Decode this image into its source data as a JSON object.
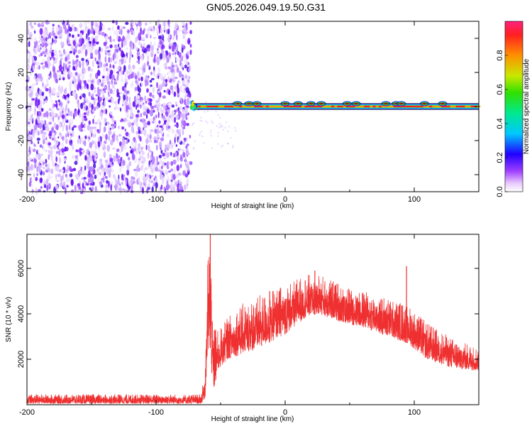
{
  "title": "GN05.2026.049.19.50.G31",
  "colors": {
    "noise_purple": "#6a00ff",
    "snr_line": "#ef3030",
    "ridge_core": "#ff2020",
    "ridge_mid": "#30e030",
    "ridge_edge": "#0040ff"
  },
  "chart_data": [
    {
      "type": "heatmap",
      "xlabel": "Height of straight line (km)",
      "ylabel": "Frequency (Hz)",
      "xlim": [
        -200,
        150
      ],
      "ylim": [
        -50,
        50
      ],
      "xticks": [
        -200,
        -100,
        0,
        100
      ],
      "yticks": [
        -40,
        -20,
        0,
        20,
        40
      ],
      "noise_region_x": [
        -200,
        -73
      ],
      "signal_frequency_hz": 0,
      "signal_range_x": [
        -73,
        150
      ],
      "ridge_hotspots_x": [
        -37,
        -28,
        -22,
        0,
        10,
        20,
        28,
        48,
        55,
        78,
        86,
        90,
        108,
        122
      ],
      "colorbar": {
        "label": "Normalized spectral amplitude",
        "range": [
          0,
          1
        ],
        "ticks": [
          0.0,
          0.2,
          0.4,
          0.6,
          0.8
        ],
        "colormap": "rainbow (white-purple-blue-cyan-green-yellow-red)"
      }
    },
    {
      "type": "line",
      "xlabel": "Height of straight line (km)",
      "ylabel": "SNR (10 * v/v)",
      "xlim": [
        -200,
        150
      ],
      "ylim": [
        0,
        7500
      ],
      "xticks": [
        -200,
        -100,
        0,
        100
      ],
      "yticks": [
        2000,
        4000,
        6000
      ],
      "series": [
        {
          "envelope": [
            {
              "x": -200,
              "lo": 50,
              "hi": 450
            },
            {
              "x": -150,
              "lo": 50,
              "hi": 450
            },
            {
              "x": -100,
              "lo": 50,
              "hi": 450
            },
            {
              "x": -65,
              "lo": 50,
              "hi": 450
            },
            {
              "x": -62,
              "lo": 300,
              "hi": 1500
            },
            {
              "x": -60,
              "lo": 2000,
              "hi": 6500
            },
            {
              "x": -58,
              "lo": 2500,
              "hi": 7500
            },
            {
              "x": -56,
              "lo": 300,
              "hi": 4000
            },
            {
              "x": -52,
              "lo": 1500,
              "hi": 3200
            },
            {
              "x": -45,
              "lo": 2000,
              "hi": 3800
            },
            {
              "x": -35,
              "lo": 2200,
              "hi": 4400
            },
            {
              "x": -20,
              "lo": 2500,
              "hi": 4800
            },
            {
              "x": 0,
              "lo": 3100,
              "hi": 5300
            },
            {
              "x": 15,
              "lo": 3800,
              "hi": 5700
            },
            {
              "x": 25,
              "lo": 4000,
              "hi": 5800
            },
            {
              "x": 40,
              "lo": 3700,
              "hi": 5400
            },
            {
              "x": 60,
              "lo": 3400,
              "hi": 5000
            },
            {
              "x": 80,
              "lo": 3000,
              "hi": 4700
            },
            {
              "x": 95,
              "lo": 2700,
              "hi": 4400
            },
            {
              "x": 110,
              "lo": 2000,
              "hi": 3600
            },
            {
              "x": 130,
              "lo": 1600,
              "hi": 2900
            },
            {
              "x": 150,
              "lo": 1500,
              "hi": 2500
            }
          ],
          "spikes": [
            {
              "x": -58,
              "y": 7500
            },
            {
              "x": -12,
              "y": 5000
            },
            {
              "x": 23,
              "y": 5900
            },
            {
              "x": 94,
              "y": 6100
            },
            {
              "x": 93,
              "y": 1500
            }
          ]
        }
      ]
    }
  ]
}
